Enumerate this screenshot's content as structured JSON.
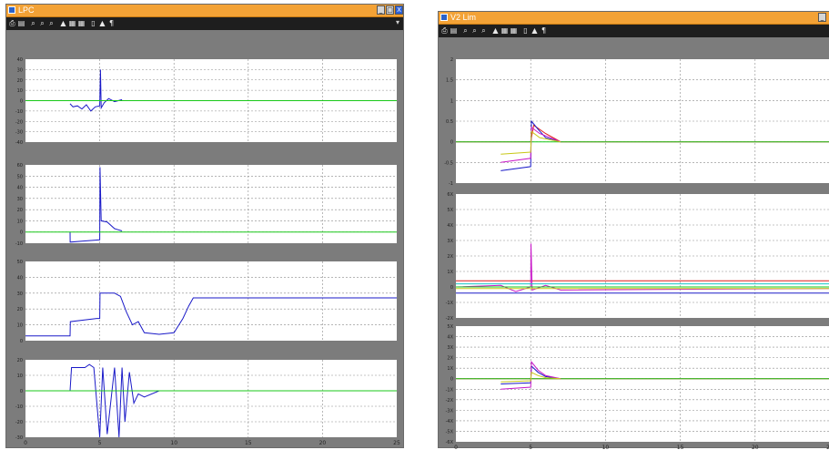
{
  "windows": [
    {
      "title": "LPC",
      "toolbar_buttons": [
        "print-icon",
        "params-icon",
        "zoom-in-icon",
        "zoom-x-icon",
        "zoom-y-icon",
        "autoscale-icon",
        "save-axes-icon",
        "restore-axes-icon",
        "float-icon",
        "lock-icon",
        "signal-selector-icon"
      ],
      "close_label": "X",
      "chart_data": [
        {
          "type": "line",
          "ylabels": [
            "40",
            "30",
            "20",
            "10",
            "0",
            "-10",
            "-20",
            "-30",
            "-40"
          ],
          "xlim": [
            0,
            25
          ],
          "series": [
            {
              "color": "#1a1ac8",
              "x": [
                3,
                3.2,
                3.5,
                3.8,
                4.1,
                4.4,
                4.7,
                5,
                5.05,
                5.1,
                5.3,
                5.6,
                6,
                6.5
              ],
              "y": [
                -3,
                -6,
                -5,
                -8,
                -4,
                -10,
                -6,
                -5,
                30,
                -7,
                -2,
                2,
                -1,
                1
              ]
            },
            {
              "color": "#18c818",
              "x": [
                0,
                3,
                5,
                6,
                25
              ],
              "y": [
                0,
                0,
                0,
                0,
                0
              ]
            }
          ]
        },
        {
          "type": "line",
          "ylabels": [
            "60",
            "50",
            "40",
            "30",
            "20",
            "10",
            "0",
            "-10"
          ],
          "xlim": [
            0,
            25
          ],
          "series": [
            {
              "color": "#1a1ac8",
              "x": [
                3,
                3.01,
                4,
                5,
                5.02,
                5.1,
                5.5,
                6,
                6.5
              ],
              "y": [
                0,
                -9,
                -8,
                -7,
                58,
                10,
                9,
                3,
                1
              ]
            },
            {
              "color": "#18c818",
              "x": [
                0,
                3,
                4.8,
                25
              ],
              "y": [
                0,
                0,
                0,
                0
              ]
            }
          ]
        },
        {
          "type": "line",
          "ylabels": [
            "50",
            "40",
            "30",
            "20",
            "10",
            "0"
          ],
          "xlim": [
            0,
            25
          ],
          "series": [
            {
              "color": "#1a1ac8",
              "x": [
                0,
                3,
                3.02,
                4.8,
                5,
                5.02,
                6,
                6.4,
                6.8,
                7.2,
                7.6,
                8,
                9,
                10,
                10.6,
                11,
                11.3,
                25
              ],
              "y": [
                3,
                3,
                12,
                14,
                14,
                30,
                30,
                28,
                18,
                10,
                12,
                5,
                4,
                5,
                14,
                22,
                27,
                27
              ]
            }
          ]
        },
        {
          "type": "line",
          "ylabels": [
            "20",
            "10",
            "0",
            "-10",
            "-20",
            "-30"
          ],
          "xlim": [
            0,
            25
          ],
          "series": [
            {
              "color": "#1a1ac8",
              "x": [
                0,
                3,
                3.1,
                4,
                4.3,
                4.6,
                5,
                5.2,
                5.5,
                6,
                6.3,
                6.5,
                6.7,
                7,
                7.3,
                7.6,
                8,
                9,
                10,
                11,
                25
              ],
              "y": [
                0,
                0,
                15,
                15,
                17,
                15,
                -30,
                15,
                -28,
                15,
                -30,
                15,
                -20,
                12,
                -8,
                -2,
                -4,
                0,
                0,
                0,
                0
              ]
            },
            {
              "color": "#18c818",
              "x": [
                0,
                3,
                25
              ],
              "y": [
                0,
                0,
                0
              ]
            }
          ]
        }
      ],
      "xtick_labels": [
        "0",
        "5",
        "10",
        "15",
        "20",
        "25"
      ]
    },
    {
      "title": "V2 Lim",
      "toolbar_buttons": [
        "print-icon",
        "params-icon",
        "zoom-in-icon",
        "zoom-x-icon",
        "zoom-y-icon",
        "autoscale-icon",
        "save-axes-icon",
        "restore-axes-icon",
        "float-icon",
        "lock-icon",
        "signal-selector-icon"
      ],
      "close_label": "",
      "chart_data": [
        {
          "type": "line",
          "ylabels": [
            "2",
            "1.5",
            "1",
            "0.5",
            "0",
            "-0.5",
            "-1"
          ],
          "xlim": [
            0,
            25
          ],
          "series": [
            {
              "color": "#e01818",
              "x": [
                0,
                5,
                5.2,
                6,
                7,
                25
              ],
              "y": [
                0,
                0,
                0.4,
                0.2,
                0,
                0
              ]
            },
            {
              "color": "#18c818",
              "x": [
                0,
                25
              ],
              "y": [
                0,
                0
              ]
            },
            {
              "color": "#1a1ac8",
              "x": [
                3,
                5,
                5.05,
                5.5,
                6,
                7
              ],
              "y": [
                -0.7,
                -0.6,
                0.5,
                0.3,
                0.1,
                0
              ]
            },
            {
              "color": "#c818c8",
              "x": [
                3,
                5,
                5.05,
                5.6,
                7
              ],
              "y": [
                -0.5,
                -0.4,
                0.35,
                0.2,
                0
              ]
            },
            {
              "color": "#c8c818",
              "x": [
                3,
                5,
                5.05,
                5.6,
                7
              ],
              "y": [
                -0.3,
                -0.25,
                0.25,
                0.1,
                0
              ]
            }
          ]
        },
        {
          "type": "line",
          "ylabels": [
            "6X",
            "5X",
            "4X",
            "3X",
            "2X",
            "1X",
            "0",
            "-1X",
            "-2X"
          ],
          "xlim": [
            0,
            25
          ],
          "series": [
            {
              "color": "#e01818",
              "x": [
                0,
                25
              ],
              "y": [
                0.4,
                0.4
              ]
            },
            {
              "color": "#1a1ac8",
              "x": [
                0,
                25
              ],
              "y": [
                -0.4,
                -0.4
              ]
            },
            {
              "color": "#c818c8",
              "x": [
                0,
                3,
                4,
                5,
                5.02,
                5.1,
                6,
                7,
                25
              ],
              "y": [
                0,
                0.1,
                -0.3,
                0,
                2.8,
                -0.2,
                0.1,
                -0.2,
                -0.1
              ]
            },
            {
              "color": "#18c8c8",
              "x": [
                0,
                25
              ],
              "y": [
                0.2,
                0.2
              ]
            },
            {
              "color": "#c8c818",
              "x": [
                0,
                25
              ],
              "y": [
                -0.1,
                -0.1
              ]
            },
            {
              "color": "#18c818",
              "x": [
                0,
                25
              ],
              "y": [
                0,
                0
              ]
            }
          ]
        },
        {
          "type": "line",
          "ylabels": [
            "5X",
            "4X",
            "3X",
            "2X",
            "1X",
            "0",
            "-1X",
            "-2X",
            "-3X",
            "-4X",
            "-5X",
            "-6X"
          ],
          "xlim": [
            0,
            25
          ],
          "series": [
            {
              "color": "#e01818",
              "x": [
                0,
                25
              ],
              "y": [
                0,
                0
              ]
            },
            {
              "color": "#18c818",
              "x": [
                0,
                25
              ],
              "y": [
                0,
                0
              ]
            },
            {
              "color": "#1a1ac8",
              "x": [
                3,
                5,
                5.05,
                5.5,
                6,
                7
              ],
              "y": [
                -0.5,
                -0.4,
                1.2,
                0.6,
                0.2,
                0
              ]
            },
            {
              "color": "#c818c8",
              "x": [
                3,
                5,
                5.05,
                5.5,
                6,
                7
              ],
              "y": [
                -1,
                -0.8,
                1.6,
                0.8,
                0.3,
                0
              ]
            },
            {
              "color": "#c8c818",
              "x": [
                3,
                5,
                5.05,
                5.5,
                6,
                7
              ],
              "y": [
                -0.3,
                -0.2,
                0.6,
                0.3,
                0.1,
                0
              ]
            }
          ]
        }
      ],
      "xtick_labels": [
        "0",
        "5",
        "10",
        "15",
        "20",
        "25"
      ]
    }
  ]
}
